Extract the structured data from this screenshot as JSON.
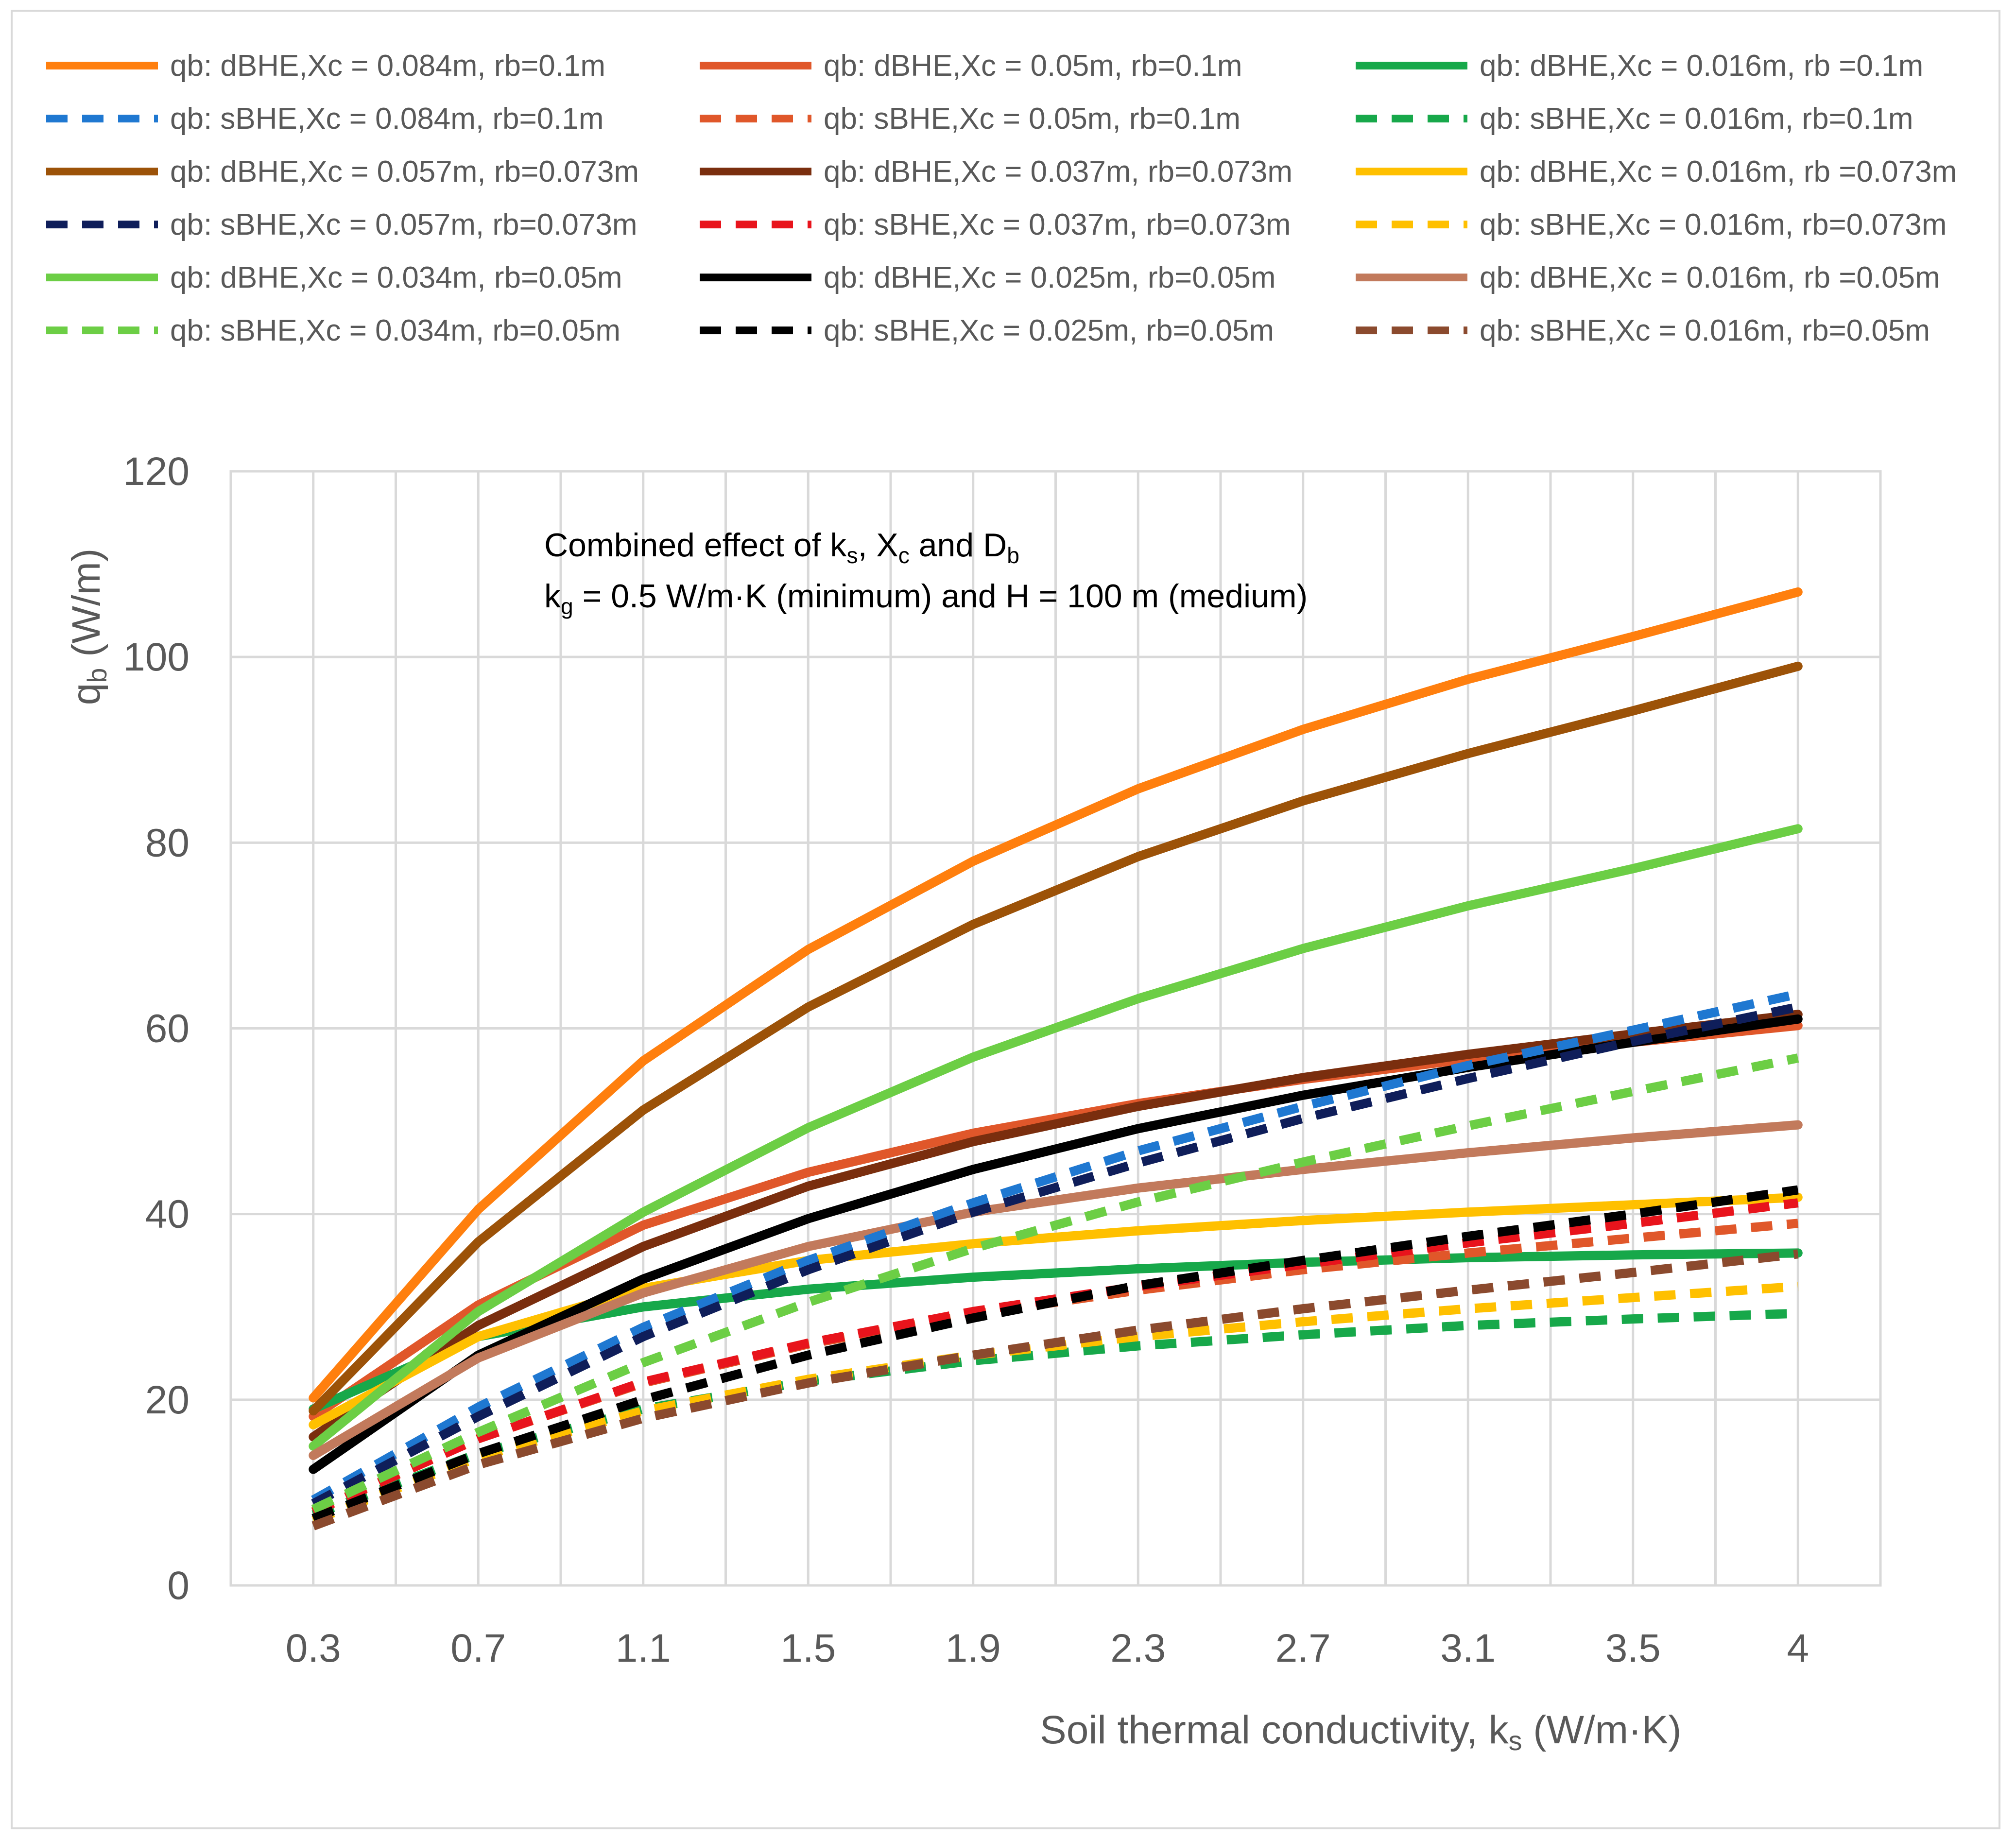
{
  "chart_data": {
    "type": "line",
    "annotation": {
      "line1": [
        "Combined effect of k",
        "s",
        ", X",
        "c",
        " and D",
        "b"
      ],
      "line2": [
        "k",
        "g",
        " = 0.5 W/m·K (minimum) and H = 100 m (medium)"
      ]
    },
    "xlabel": [
      "Soil thermal conductivity, k",
      "s",
      " (W/m·K)"
    ],
    "ylabel": [
      "q",
      "b",
      " (W/m)"
    ],
    "x": [
      0.3,
      0.7,
      1.1,
      1.5,
      1.9,
      2.3,
      2.7,
      3.1,
      3.5,
      4.0
    ],
    "x_tick_labels": [
      "0.3",
      "0.7",
      "1.1",
      "1.5",
      "1.9",
      "2.3",
      "2.7",
      "3.1",
      "3.5",
      "4"
    ],
    "ylim": [
      0,
      120
    ],
    "y_ticks": [
      0,
      20,
      40,
      60,
      80,
      100,
      120
    ],
    "grid": true,
    "legend_position": "top",
    "series": [
      {
        "name": "qb: dBHE,Xc = 0.084m, rb=0.1m",
        "color": "#FF7F0E",
        "dash": false,
        "values": [
          20.2,
          40.5,
          56.5,
          68.5,
          78.0,
          85.8,
          92.2,
          97.6,
          102.2,
          107.0
        ]
      },
      {
        "name": "qb: dBHE,Xc = 0.05m, rb=0.1m",
        "color": "#E0572A",
        "dash": false,
        "values": [
          18.2,
          30.2,
          38.8,
          44.5,
          48.7,
          51.9,
          54.5,
          56.7,
          58.5,
          60.3
        ]
      },
      {
        "name": "qb: dBHE,Xc = 0.016m, rb =0.1m",
        "color": "#17A84A",
        "dash": false,
        "values": [
          19.0,
          26.8,
          30.0,
          31.9,
          33.2,
          34.1,
          34.8,
          35.3,
          35.6,
          35.8
        ]
      },
      {
        "name": "qb: sBHE,Xc = 0.084m, rb=0.1m",
        "color": "#1F78D1",
        "dash": true,
        "values": [
          9.2,
          19.2,
          27.8,
          35.0,
          41.2,
          46.8,
          51.6,
          56.0,
          59.8,
          63.7
        ]
      },
      {
        "name": "qb: sBHE,Xc = 0.05m, rb=0.1m",
        "color": "#E0572A",
        "dash": true,
        "values": [
          8.0,
          15.8,
          21.8,
          26.0,
          29.2,
          31.8,
          34.0,
          35.8,
          37.4,
          39.0
        ]
      },
      {
        "name": "qb: sBHE,Xc = 0.016m, rb=0.1m",
        "color": "#17A84A",
        "dash": true,
        "values": [
          7.6,
          14.2,
          19.0,
          22.0,
          24.2,
          25.8,
          27.0,
          28.0,
          28.7,
          29.3
        ]
      },
      {
        "name": "qb: dBHE,Xc = 0.057m, rb=0.073m",
        "color": "#9C5208",
        "dash": false,
        "values": [
          18.8,
          37.0,
          51.2,
          62.3,
          71.2,
          78.5,
          84.5,
          89.6,
          94.2,
          99.0
        ]
      },
      {
        "name": "qb: dBHE,Xc = 0.037m, rb=0.073m",
        "color": "#7A2E0E",
        "dash": false,
        "values": [
          16.0,
          28.0,
          36.5,
          43.0,
          47.8,
          51.6,
          54.7,
          57.2,
          59.4,
          61.5
        ]
      },
      {
        "name": "qb: dBHE,Xc = 0.016m, rb =0.073m",
        "color": "#FFC000",
        "dash": false,
        "values": [
          17.3,
          26.8,
          32.0,
          35.0,
          36.8,
          38.2,
          39.3,
          40.2,
          41.0,
          41.8
        ]
      },
      {
        "name": "qb: sBHE,Xc = 0.057m, rb=0.073m",
        "color": "#0F1E5A",
        "dash": true,
        "values": [
          8.8,
          18.2,
          26.8,
          34.0,
          40.2,
          45.5,
          50.3,
          54.6,
          58.6,
          62.3
        ]
      },
      {
        "name": "qb: sBHE,Xc = 0.037m, rb=0.073m",
        "color": "#E8141C",
        "dash": true,
        "values": [
          7.9,
          15.8,
          21.9,
          26.1,
          29.5,
          32.2,
          34.6,
          36.9,
          39.0,
          41.2
        ]
      },
      {
        "name": "qb: sBHE,Xc = 0.016m, rb=0.073m",
        "color": "#FFC000",
        "dash": true,
        "values": [
          7.0,
          13.8,
          18.8,
          22.2,
          24.8,
          26.8,
          28.4,
          29.8,
          31.0,
          32.2
        ]
      },
      {
        "name": "qb: dBHE,Xc = 0.034m, rb=0.05m",
        "color": "#6CCE45",
        "dash": false,
        "values": [
          15.0,
          29.5,
          40.2,
          49.3,
          56.9,
          63.2,
          68.6,
          73.2,
          77.2,
          81.5
        ]
      },
      {
        "name": "qb: dBHE,Xc = 0.025m, rb=0.05m",
        "color": "#000000",
        "dash": false,
        "values": [
          12.5,
          24.8,
          33.0,
          39.5,
          44.8,
          49.2,
          52.8,
          55.8,
          58.5,
          61.0
        ]
      },
      {
        "name": "qb: dBHE,Xc = 0.016m, rb =0.05m",
        "color": "#C27A5C",
        "dash": false,
        "values": [
          14.0,
          24.5,
          31.5,
          36.5,
          40.2,
          42.8,
          44.8,
          46.6,
          48.2,
          49.6
        ]
      },
      {
        "name": "qb: sBHE,Xc = 0.034m, rb=0.05m",
        "color": "#6CCE45",
        "dash": true,
        "values": [
          8.2,
          16.5,
          24.0,
          30.5,
          36.3,
          41.3,
          45.6,
          49.5,
          53.2,
          56.8
        ]
      },
      {
        "name": "qb: sBHE,Xc = 0.025m, rb=0.05m",
        "color": "#000000",
        "dash": true,
        "values": [
          7.2,
          14.2,
          20.0,
          24.8,
          28.8,
          32.3,
          35.0,
          37.6,
          40.0,
          42.6
        ]
      },
      {
        "name": "qb: sBHE,Xc = 0.016m, rb=0.05m",
        "color": "#8B4A2E",
        "dash": true,
        "values": [
          6.4,
          13.0,
          18.0,
          21.8,
          24.8,
          27.5,
          29.8,
          31.8,
          33.7,
          35.7
        ]
      }
    ]
  }
}
